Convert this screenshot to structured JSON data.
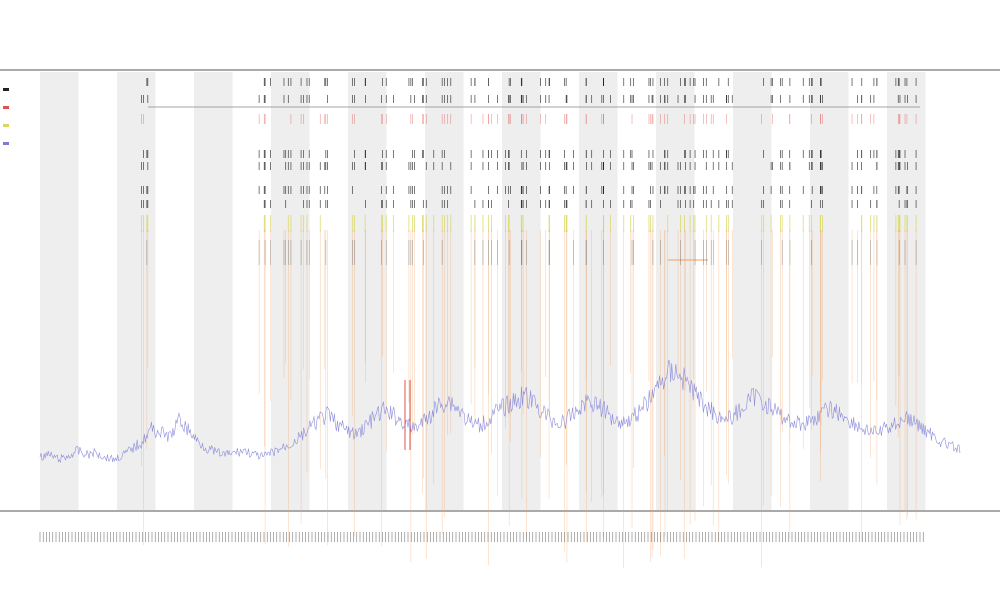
{
  "chart_data": {
    "type": "line",
    "title": "",
    "subtitle": "",
    "xlabel": "",
    "ylabel": "",
    "legend": {
      "placement": "left",
      "items": [
        "",
        "",
        "",
        ""
      ]
    },
    "band_count": 12,
    "x_range": [
      0,
      100
    ],
    "y_range": [
      0,
      100
    ],
    "series": [
      {
        "values": [
          5,
          6,
          4,
          5,
          8,
          6,
          7,
          5,
          4,
          6,
          9,
          12,
          18,
          16,
          14,
          22,
          17,
          12,
          9,
          7,
          6,
          7,
          8,
          6,
          5,
          7,
          9,
          11,
          14,
          18,
          22,
          24,
          20,
          17,
          15,
          19,
          23,
          26,
          24,
          21,
          18,
          20,
          24,
          29,
          31,
          27,
          22,
          19,
          21,
          25,
          28,
          30,
          33,
          30,
          26,
          22,
          20,
          23,
          27,
          31,
          29,
          25,
          22,
          21,
          24,
          28,
          34,
          40,
          45,
          42,
          37,
          31,
          27,
          24,
          22,
          25,
          29,
          33,
          30,
          26,
          23,
          21,
          20,
          22,
          24,
          27,
          25,
          22,
          19,
          17,
          16,
          18,
          20,
          23,
          21,
          18,
          15,
          12,
          10,
          8
        ]
      }
    ],
    "colors": {
      "line": "#7b7bd8",
      "vertical_orange": "#f0a060",
      "vertical_red": "#e05050",
      "tick_black": "#222222",
      "tick_yellow": "#d8d860",
      "band_shade": "#eeeeee",
      "axis": "#333333"
    }
  }
}
